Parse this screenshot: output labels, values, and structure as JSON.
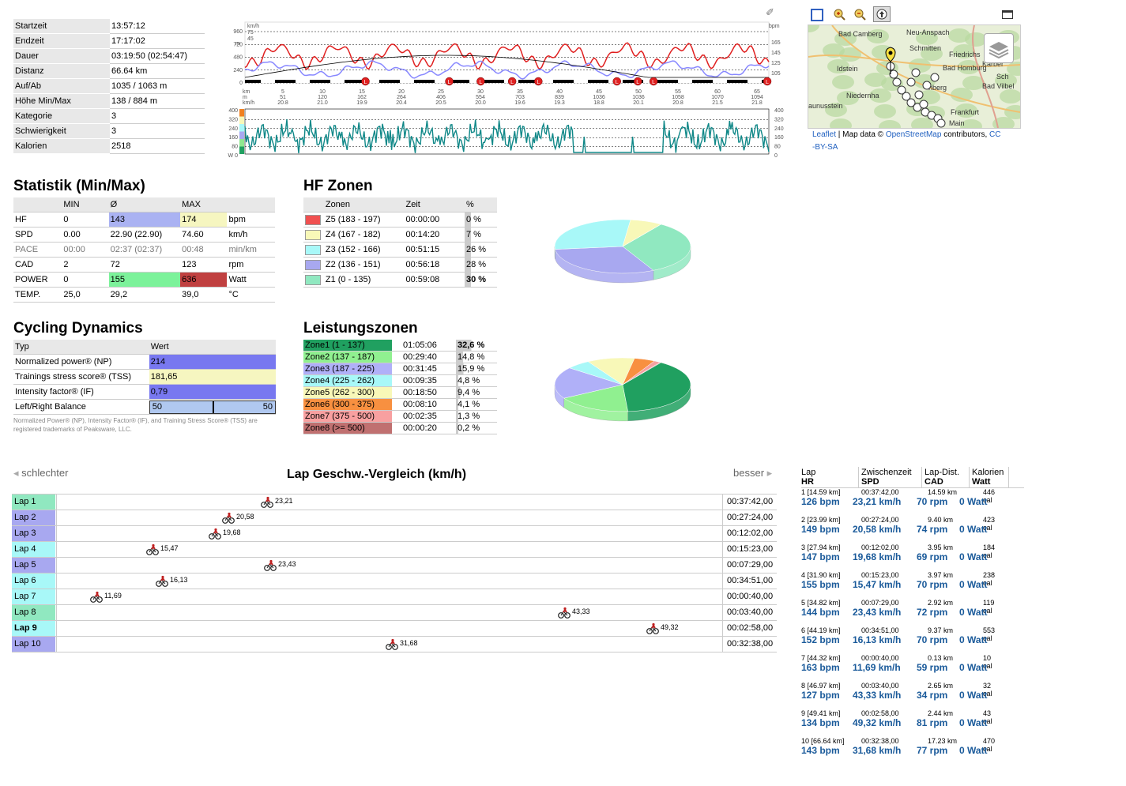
{
  "summary": [
    {
      "key": "Startzeit",
      "value": "13:57:12"
    },
    {
      "key": "Endzeit",
      "value": "17:17:02"
    },
    {
      "key": "Dauer",
      "value": "03:19:50 (02:54:47)"
    },
    {
      "key": "Distanz",
      "value": "66.64 km"
    },
    {
      "key": "Auf/Ab",
      "value": "1035 / 1063 m"
    },
    {
      "key": "Höhe Min/Max",
      "value": "138 / 884 m"
    },
    {
      "key": "Kategorie",
      "value": "3"
    },
    {
      "key": "Schwierigkeit",
      "value": "3"
    },
    {
      "key": "Kalorien",
      "value": "2518"
    }
  ],
  "main_chart": {
    "units_left": [
      "km/h",
      "75",
      "45",
      "m"
    ],
    "y_left": [
      "960",
      "720",
      "480",
      "240",
      "0"
    ],
    "y_right": [
      "165",
      "145",
      "125",
      "105"
    ],
    "unit_right": "bpm",
    "km": [
      "5",
      "10",
      "15",
      "20",
      "25",
      "30",
      "35",
      "40",
      "45",
      "50",
      "55",
      "60",
      "65"
    ],
    "m": [
      "51",
      "120",
      "162",
      "264",
      "406",
      "554",
      "703",
      "839",
      "1036",
      "1036",
      "1058",
      "1070",
      "1094"
    ],
    "kmh": [
      "20.8",
      "21.0",
      "19.9",
      "20.4",
      "20.5",
      "20.0",
      "19.6",
      "19.3",
      "18.8",
      "20.1",
      "20.8",
      "21.5",
      "21.8"
    ],
    "row_labels": [
      "km",
      "m",
      "km/h"
    ],
    "lap_marker": "L"
  },
  "power_chart": {
    "y_left": [
      "400",
      "320",
      "240",
      "160",
      "80",
      "W 0"
    ],
    "y_right": [
      "400",
      "320",
      "240",
      "160",
      "80",
      "0"
    ]
  },
  "map": {
    "attribution_leaflet": "Leaflet",
    "attribution_sep": " | Map data © ",
    "attribution_osm": "OpenStreetMap",
    "attribution_rest": " contributors, ",
    "attribution_cc": "CC",
    "attribution_bysa": "-BY-SA",
    "places": [
      "Bad Camberg",
      "Neu-Anspach",
      "Schmitten",
      "Friedrichs",
      "Idstein",
      "Bad Homburg",
      "Karber",
      "Niedernha",
      "nberg",
      "Sch",
      "Bad Vilbel",
      "aunusstein",
      "Frankfurt",
      "Main"
    ]
  },
  "statistik": {
    "title": "Statistik (Min/Max)",
    "headers": [
      "",
      "MIN",
      "Ø",
      "MAX",
      ""
    ],
    "rows": [
      {
        "name": "HF",
        "min": "0",
        "avg": "143",
        "max": "174",
        "unit": "bpm",
        "avg_color": "#aab2f2",
        "max_color": "#f6f6c0",
        "gray": false
      },
      {
        "name": "SPD",
        "min": "0.00",
        "avg": "22.90  (22.90)",
        "max": "74.60",
        "unit": "km/h",
        "avg_color": "",
        "max_color": "",
        "gray": false
      },
      {
        "name": "PACE",
        "min": "00:00",
        "avg": "02:37  (02:37)",
        "max": "00:48",
        "unit": "min/km",
        "avg_color": "",
        "max_color": "",
        "gray": true
      },
      {
        "name": "CAD",
        "min": "2",
        "avg": "72",
        "max": "123",
        "unit": "rpm",
        "avg_color": "",
        "max_color": "",
        "gray": false
      },
      {
        "name": "POWER",
        "min": "0",
        "avg": "155",
        "max": "636",
        "unit": "Watt",
        "avg_color": "#7cf29a",
        "max_color": "#c04040",
        "gray": false
      },
      {
        "name": "TEMP.",
        "min": "25,0",
        "avg": "29,2",
        "max": "39,0",
        "unit": "°C",
        "avg_color": "",
        "max_color": "",
        "gray": false
      }
    ]
  },
  "hf_zonen": {
    "title": "HF Zonen",
    "headers": [
      "",
      "Zonen",
      "Zeit",
      "%"
    ],
    "rows": [
      {
        "color": "#f05050",
        "zone": "Z5 (183 - 197)",
        "time": "00:00:00",
        "pct": "0 %",
        "pct_value": 0
      },
      {
        "color": "#f8f8b8",
        "zone": "Z4 (167 - 182)",
        "time": "00:14:20",
        "pct": "7 %",
        "pct_value": 7
      },
      {
        "color": "#a8f8f8",
        "zone": "Z3 (152 - 166)",
        "time": "00:51:15",
        "pct": "26 %",
        "pct_value": 26
      },
      {
        "color": "#a8a8f0",
        "zone": "Z2 (136 - 151)",
        "time": "00:56:18",
        "pct": "28 %",
        "pct_value": 28
      },
      {
        "color": "#90e8c0",
        "zone": "Z1 (0 - 135)",
        "time": "00:59:08",
        "pct": "30 %",
        "pct_value": 30
      }
    ]
  },
  "cycling_dynamics": {
    "title": "Cycling Dynamics",
    "headers": [
      "Typ",
      "Wert"
    ],
    "rows": [
      {
        "name": "Normalized power® (NP)",
        "value": "214",
        "color": "#7878f0"
      },
      {
        "name": "Trainings stress score® (TSS)",
        "value": "181,65",
        "color": "#f6f6c0"
      },
      {
        "name": "Intensity factor® (IF)",
        "value": "0,79",
        "color": "#7878f0"
      }
    ],
    "balance": {
      "name": "Left/Right Balance",
      "left": "50",
      "right": "50",
      "left_fraction": 0.5
    },
    "footnote": "Normalized Power® (NP), Intensity Factor® (IF), and Training Stress Score® (TSS) are registered trademarks of Peaksware, LLC."
  },
  "leistungszonen": {
    "title": "Leistungszonen",
    "rows": [
      {
        "zone": "Zone1 (1 - 137)",
        "time": "01:05:06",
        "pct": "32,6 %",
        "color": "#20a060",
        "pct_value": 32.6,
        "bold": true
      },
      {
        "zone": "Zone2 (137 - 187)",
        "time": "00:29:40",
        "pct": "14,8 %",
        "color": "#90f090",
        "pct_value": 14.8,
        "bold": false
      },
      {
        "zone": "Zone3 (187 - 225)",
        "time": "00:31:45",
        "pct": "15,9 %",
        "color": "#b0b0f8",
        "pct_value": 15.9,
        "bold": false
      },
      {
        "zone": "Zone4 (225 - 262)",
        "time": "00:09:35",
        "pct": "4,8 %",
        "color": "#a8f8f8",
        "pct_value": 4.8,
        "bold": false
      },
      {
        "zone": "Zone5 (262 - 300)",
        "time": "00:18:50",
        "pct": "9,4 %",
        "color": "#f8f8b8",
        "pct_value": 9.4,
        "bold": false
      },
      {
        "zone": "Zone6 (300 - 375)",
        "time": "00:08:10",
        "pct": "4,1 %",
        "color": "#f89040",
        "pct_value": 4.1,
        "bold": false
      },
      {
        "zone": "Zone7 (375 - 500)",
        "time": "00:02:35",
        "pct": "1,3 %",
        "color": "#f8a0a0",
        "pct_value": 1.3,
        "bold": false
      },
      {
        "zone": "Zone8 (>= 500)",
        "time": "00:00:20",
        "pct": "0,2 %",
        "color": "#c07070",
        "pct_value": 0.2,
        "bold": false
      }
    ]
  },
  "lap_compare": {
    "title": "Lap Geschw.-Vergleich (km/h)",
    "worse": "schlechter",
    "better": "besser",
    "speed_min": 9.0,
    "speed_max": 54.0,
    "laps": [
      {
        "name": "Lap 1",
        "speed": 23.21,
        "label": "23,21",
        "time": "00:37:42,00",
        "color": "#90e8c0",
        "bold": false
      },
      {
        "name": "Lap 2",
        "speed": 20.58,
        "label": "20,58",
        "time": "00:27:24,00",
        "color": "#a8a8f0",
        "bold": false
      },
      {
        "name": "Lap 3",
        "speed": 19.68,
        "label": "19,68",
        "time": "00:12:02,00",
        "color": "#a8a8f0",
        "bold": false
      },
      {
        "name": "Lap 4",
        "speed": 15.47,
        "label": "15,47",
        "time": "00:15:23,00",
        "color": "#a8f8f8",
        "bold": false
      },
      {
        "name": "Lap 5",
        "speed": 23.43,
        "label": "23,43",
        "time": "00:07:29,00",
        "color": "#a8a8f0",
        "bold": false
      },
      {
        "name": "Lap 6",
        "speed": 16.13,
        "label": "16,13",
        "time": "00:34:51,00",
        "color": "#a8f8f8",
        "bold": false
      },
      {
        "name": "Lap 7",
        "speed": 11.69,
        "label": "11,69",
        "time": "00:00:40,00",
        "color": "#a8f8f8",
        "bold": false
      },
      {
        "name": "Lap 8",
        "speed": 43.33,
        "label": "43,33",
        "time": "00:03:40,00",
        "color": "#90e8c0",
        "bold": false
      },
      {
        "name": "Lap 9",
        "speed": 49.32,
        "label": "49,32",
        "time": "00:02:58,00",
        "color": "#a8f8f8",
        "bold": true
      },
      {
        "name": "Lap 10",
        "speed": 31.68,
        "label": "31,68",
        "time": "00:32:38,00",
        "color": "#a8a8f0",
        "bold": false
      }
    ]
  },
  "lap_list": {
    "headers_top": [
      "Lap",
      "Zwischenzeit",
      "Lap-Dist.",
      "Kalorien"
    ],
    "headers_bottom": [
      "HR",
      "SPD",
      "CAD",
      "Watt"
    ],
    "items": [
      {
        "lap": "1  [14.59 km]",
        "time": "00:37:42,00",
        "dist": "14.59 km",
        "cal": "446 cal",
        "hr": "126 bpm",
        "spd": "23,21 km/h",
        "cad": "70 rpm",
        "watt": "0 Watt"
      },
      {
        "lap": "2  [23.99 km]",
        "time": "00:27:24,00",
        "dist": "9.40 km",
        "cal": "423 cal",
        "hr": "149 bpm",
        "spd": "20,58 km/h",
        "cad": "74 rpm",
        "watt": "0 Watt"
      },
      {
        "lap": "3  [27.94 km]",
        "time": "00:12:02,00",
        "dist": "3.95 km",
        "cal": "184 cal",
        "hr": "147 bpm",
        "spd": "19,68 km/h",
        "cad": "69 rpm",
        "watt": "0 Watt"
      },
      {
        "lap": "4  [31.90 km]",
        "time": "00:15:23,00",
        "dist": "3.97 km",
        "cal": "238 cal",
        "hr": "155 bpm",
        "spd": "15,47 km/h",
        "cad": "70 rpm",
        "watt": "0 Watt"
      },
      {
        "lap": "5  [34.82 km]",
        "time": "00:07:29,00",
        "dist": "2.92 km",
        "cal": "119 cal",
        "hr": "144 bpm",
        "spd": "23,43 km/h",
        "cad": "72 rpm",
        "watt": "0 Watt"
      },
      {
        "lap": "6  [44.19 km]",
        "time": "00:34:51,00",
        "dist": "9.37 km",
        "cal": "553 cal",
        "hr": "152 bpm",
        "spd": "16,13 km/h",
        "cad": "70 rpm",
        "watt": "0 Watt"
      },
      {
        "lap": "7  [44.32 km]",
        "time": "00:00:40,00",
        "dist": "0.13 km",
        "cal": "10 cal",
        "hr": "163 bpm",
        "spd": "11,69 km/h",
        "cad": "59 rpm",
        "watt": "0 Watt"
      },
      {
        "lap": "8  [46.97 km]",
        "time": "00:03:40,00",
        "dist": "2.65 km",
        "cal": "32 cal",
        "hr": "127 bpm",
        "spd": "43,33 km/h",
        "cad": "34 rpm",
        "watt": "0 Watt"
      },
      {
        "lap": "9  [49.41 km]",
        "time": "00:02:58,00",
        "dist": "2.44 km",
        "cal": "43 cal",
        "hr": "134 bpm",
        "spd": "49,32 km/h",
        "cad": "81 rpm",
        "watt": "0 Watt"
      },
      {
        "lap": "10  [66.64 km]",
        "time": "00:32:38,00",
        "dist": "17.23 km",
        "cal": "470 cal",
        "hr": "143 bpm",
        "spd": "31,68 km/h",
        "cad": "77 rpm",
        "watt": "0 Watt"
      }
    ]
  }
}
